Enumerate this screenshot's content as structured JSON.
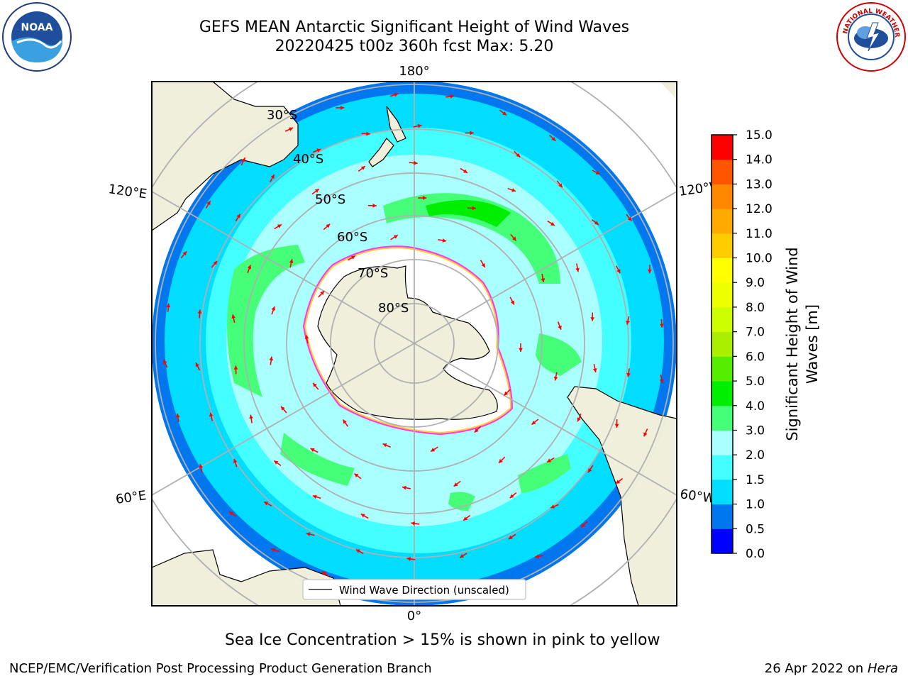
{
  "header": {
    "title_line1": "GEFS MEAN Antarctic Significant Height of Wind Waves",
    "title_line2": "20220425 t00z 360h fcst   Max: 5.20"
  },
  "map": {
    "projection": "south-polar-stereographic",
    "lat_labels": [
      "30°S",
      "40°S",
      "50°S",
      "60°S",
      "70°S",
      "80°S"
    ],
    "lon_labels": {
      "top": "180°",
      "bottom": "0°",
      "left_upper": "120°E",
      "left_lower": "60°E",
      "right_upper": "120°W",
      "right_lower": "60°W"
    },
    "legend_label": "Wind Wave Direction (unscaled)",
    "arrow_color": "#ff0000",
    "land_color": "#efefdb",
    "ice_colors": [
      "#ff33ff",
      "#ffcc33",
      "#ffff66"
    ]
  },
  "colorbar": {
    "label_line1": "Significant Height of Wind",
    "label_line2": "Waves [m]",
    "ticks": [
      "0.0",
      "0.5",
      "1.0",
      "1.5",
      "2.0",
      "3.0",
      "4.0",
      "5.0",
      "6.0",
      "7.0",
      "8.0",
      "9.0",
      "10.0",
      "11.0",
      "12.0",
      "13.0",
      "14.0",
      "15.0"
    ],
    "colors": [
      "#0000ff",
      "#0077ee",
      "#00ddff",
      "#44ffff",
      "#aaffff",
      "#44ff77",
      "#00ee00",
      "#55ee00",
      "#aaee00",
      "#ccff00",
      "#eeff00",
      "#ffff00",
      "#ffcc00",
      "#ffaa00",
      "#ff8800",
      "#ff5500",
      "#ff0000"
    ]
  },
  "footer": {
    "note": "Sea Ice Concentration > 15% is shown in pink to yellow",
    "credit": "NCEP/EMC/Verification Post Processing Product Generation Branch",
    "date_prefix": "26 Apr 2022 on ",
    "date_host": "Hera"
  },
  "logos": {
    "left_text": "NOAA",
    "right_text": "NATIONAL WEATHER SERVICE"
  }
}
